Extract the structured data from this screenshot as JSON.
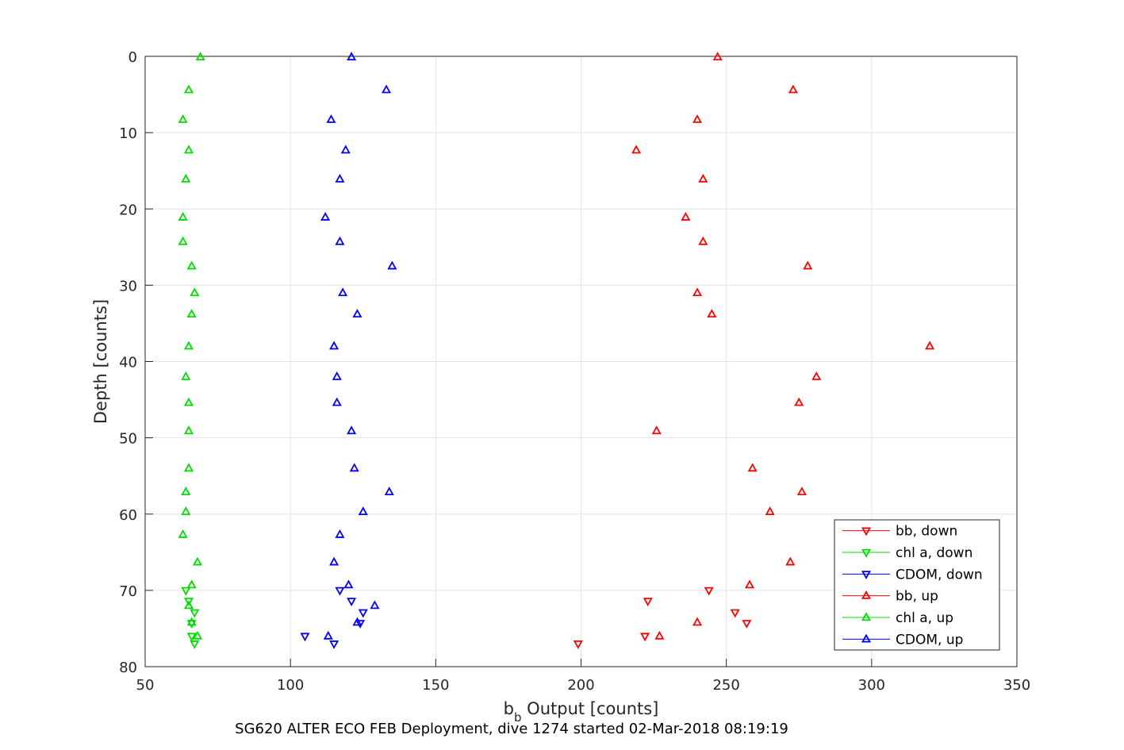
{
  "chart_data": {
    "type": "scatter",
    "title": "",
    "caption": "SG620 ALTER ECO FEB Deployment, dive 1274 started 02-Mar-2018 08:19:19",
    "xlabel_main": "b",
    "xlabel_sub": "b",
    "xlabel_rest": " Output [counts]",
    "ylabel": "Depth [counts]",
    "xlim": [
      50,
      350
    ],
    "ylim": [
      0,
      80
    ],
    "y_reversed": true,
    "grid": true,
    "legend_position": "bottom-right",
    "x_ticks": [
      "50",
      "100",
      "150",
      "200",
      "250",
      "300",
      "350"
    ],
    "y_ticks": [
      "0",
      "10",
      "20",
      "30",
      "40",
      "50",
      "60",
      "70",
      "80"
    ],
    "colors": {
      "red": "#ff0000",
      "green": "#00dd00",
      "blue": "#0000ff",
      "grid": "#e3e3e3",
      "axis": "#262626"
    },
    "series": [
      {
        "name": "bb, down",
        "color": "#ff0000",
        "marker": "triangle-down",
        "points": [
          [
            244,
            70.0
          ],
          [
            223,
            71.4
          ],
          [
            253,
            72.9
          ],
          [
            257,
            74.3
          ],
          [
            222,
            76.0
          ],
          [
            199,
            77.0
          ]
        ]
      },
      {
        "name": "chl a, down",
        "color": "#00dd00",
        "marker": "triangle-down",
        "points": [
          [
            64,
            70.0
          ],
          [
            65,
            71.4
          ],
          [
            67,
            72.9
          ],
          [
            66,
            74.3
          ],
          [
            66,
            76.0
          ],
          [
            67,
            77.0
          ]
        ]
      },
      {
        "name": "CDOM, down",
        "color": "#0000ff",
        "marker": "triangle-down",
        "points": [
          [
            117,
            70.0
          ],
          [
            121,
            71.4
          ],
          [
            125,
            72.9
          ],
          [
            124,
            74.3
          ],
          [
            105,
            76.0
          ],
          [
            115,
            77.0
          ]
        ]
      },
      {
        "name": "bb, up",
        "color": "#ff0000",
        "marker": "triangle-up",
        "points": [
          [
            247,
            0.1
          ],
          [
            273,
            4.4
          ],
          [
            240,
            8.3
          ],
          [
            219,
            12.3
          ],
          [
            242,
            16.1
          ],
          [
            236,
            21.1
          ],
          [
            242,
            24.3
          ],
          [
            278,
            27.5
          ],
          [
            240,
            31.0
          ],
          [
            245,
            33.8
          ],
          [
            320,
            38.0
          ],
          [
            281,
            42.0
          ],
          [
            275,
            45.4
          ],
          [
            226,
            49.1
          ],
          [
            259,
            54.0
          ],
          [
            276,
            57.1
          ],
          [
            265,
            59.7
          ],
          [
            272,
            66.3
          ],
          [
            258,
            69.3
          ],
          [
            240,
            74.2
          ],
          [
            227,
            76.0
          ]
        ]
      },
      {
        "name": "chl a, up",
        "color": "#00dd00",
        "marker": "triangle-up",
        "points": [
          [
            69,
            0.1
          ],
          [
            65,
            4.4
          ],
          [
            63,
            8.3
          ],
          [
            65,
            12.3
          ],
          [
            64,
            16.1
          ],
          [
            63,
            21.1
          ],
          [
            63,
            24.3
          ],
          [
            66,
            27.5
          ],
          [
            67,
            31.0
          ],
          [
            66,
            33.8
          ],
          [
            65,
            38.0
          ],
          [
            64,
            42.0
          ],
          [
            65,
            45.4
          ],
          [
            65,
            49.1
          ],
          [
            65,
            54.0
          ],
          [
            64,
            57.1
          ],
          [
            64,
            59.7
          ],
          [
            63,
            62.7
          ],
          [
            68,
            66.3
          ],
          [
            66,
            69.3
          ],
          [
            65,
            72.0
          ],
          [
            66,
            74.2
          ],
          [
            68,
            76.0
          ]
        ]
      },
      {
        "name": "CDOM, up",
        "color": "#0000ff",
        "marker": "triangle-up",
        "points": [
          [
            121,
            0.1
          ],
          [
            133,
            4.4
          ],
          [
            114,
            8.3
          ],
          [
            119,
            12.3
          ],
          [
            117,
            16.1
          ],
          [
            112,
            21.1
          ],
          [
            117,
            24.3
          ],
          [
            135,
            27.5
          ],
          [
            118,
            31.0
          ],
          [
            123,
            33.8
          ],
          [
            115,
            38.0
          ],
          [
            116,
            42.0
          ],
          [
            116,
            45.4
          ],
          [
            121,
            49.1
          ],
          [
            122,
            54.0
          ],
          [
            134,
            57.1
          ],
          [
            125,
            59.7
          ],
          [
            117,
            62.7
          ],
          [
            115,
            66.3
          ],
          [
            120,
            69.3
          ],
          [
            129,
            72.0
          ],
          [
            123,
            74.2
          ],
          [
            113,
            76.0
          ]
        ]
      }
    ]
  }
}
